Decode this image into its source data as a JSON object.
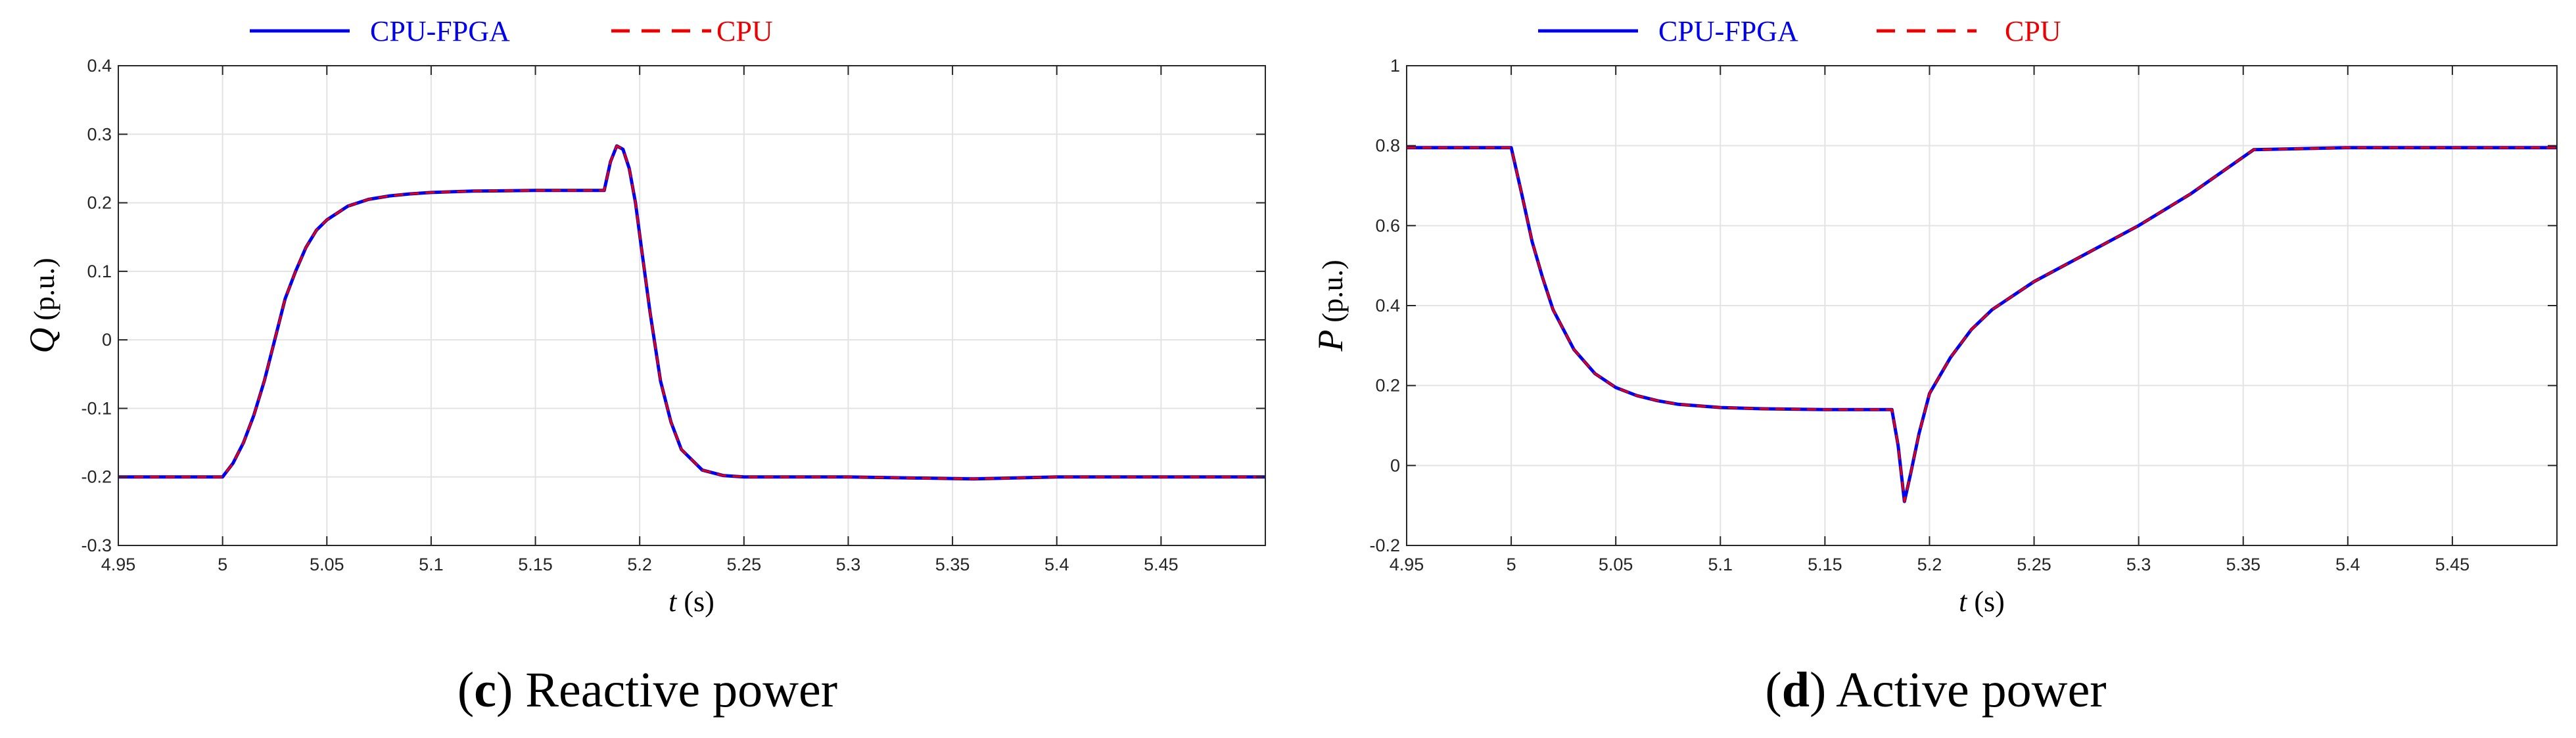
{
  "legend_items": [
    {
      "label": "CPU-FPGA",
      "color": "#0000ee",
      "style": "solid"
    },
    {
      "label": "CPU",
      "color": "#ee0000",
      "style": "dashed"
    }
  ],
  "chart_data": [
    {
      "type": "line",
      "caption_letter": "c",
      "caption_text": " Reactive power",
      "ylabel_symbol": "Q",
      "ylabel_unit": " (p.u.)",
      "xlabel_symbol": "t",
      "xlabel_unit": " (s)",
      "xlim": [
        4.95,
        5.5
      ],
      "ylim": [
        -0.3,
        0.4
      ],
      "x_ticks": [
        4.95,
        5,
        5.05,
        5.1,
        5.15,
        5.2,
        5.25,
        5.3,
        5.35,
        5.4,
        5.45
      ],
      "x_tick_labels": [
        "4.95",
        "5",
        "5.05",
        "5.1",
        "5.15",
        "5.2",
        "5.25",
        "5.3",
        "5.35",
        "5.4",
        "5.45"
      ],
      "y_ticks": [
        -0.3,
        -0.2,
        -0.1,
        0,
        0.1,
        0.2,
        0.3,
        0.4
      ],
      "y_tick_labels": [
        "-0.3",
        "-0.2",
        "-0.1",
        "0",
        "0.1",
        "0.2",
        "0.3",
        "0.4"
      ],
      "grid": true,
      "legend_position": "top",
      "series": [
        {
          "name": "CPU-FPGA",
          "color": "#0000ee",
          "x": [
            4.95,
            5.0,
            5.005,
            5.01,
            5.015,
            5.02,
            5.025,
            5.03,
            5.035,
            5.04,
            5.045,
            5.05,
            5.06,
            5.07,
            5.08,
            5.09,
            5.1,
            5.12,
            5.15,
            5.183,
            5.186,
            5.189,
            5.192,
            5.195,
            5.198,
            5.201,
            5.205,
            5.21,
            5.215,
            5.22,
            5.23,
            5.24,
            5.25,
            5.3,
            5.36,
            5.4,
            5.5
          ],
          "y": [
            -0.2,
            -0.2,
            -0.18,
            -0.15,
            -0.11,
            -0.06,
            0.0,
            0.06,
            0.1,
            0.135,
            0.16,
            0.175,
            0.195,
            0.205,
            0.21,
            0.213,
            0.215,
            0.217,
            0.218,
            0.218,
            0.26,
            0.283,
            0.278,
            0.25,
            0.2,
            0.13,
            0.04,
            -0.06,
            -0.12,
            -0.16,
            -0.19,
            -0.198,
            -0.2,
            -0.2,
            -0.203,
            -0.2,
            -0.2
          ]
        },
        {
          "name": "CPU",
          "color": "#ee0000",
          "x": [
            4.95,
            5.0,
            5.005,
            5.01,
            5.015,
            5.02,
            5.025,
            5.03,
            5.035,
            5.04,
            5.045,
            5.05,
            5.06,
            5.07,
            5.08,
            5.09,
            5.1,
            5.12,
            5.15,
            5.183,
            5.186,
            5.189,
            5.192,
            5.195,
            5.198,
            5.201,
            5.205,
            5.21,
            5.215,
            5.22,
            5.23,
            5.24,
            5.25,
            5.3,
            5.36,
            5.4,
            5.5
          ],
          "y": [
            -0.2,
            -0.2,
            -0.18,
            -0.15,
            -0.11,
            -0.06,
            0.0,
            0.06,
            0.1,
            0.135,
            0.16,
            0.175,
            0.195,
            0.205,
            0.21,
            0.213,
            0.215,
            0.217,
            0.218,
            0.218,
            0.26,
            0.283,
            0.278,
            0.25,
            0.2,
            0.13,
            0.04,
            -0.06,
            -0.12,
            -0.16,
            -0.19,
            -0.198,
            -0.2,
            -0.2,
            -0.203,
            -0.2,
            -0.2
          ]
        }
      ]
    },
    {
      "type": "line",
      "caption_letter": "d",
      "caption_text": " Active power",
      "ylabel_symbol": "P",
      "ylabel_unit": " (p.u.)",
      "xlabel_symbol": "t",
      "xlabel_unit": " (s)",
      "xlim": [
        4.95,
        5.5
      ],
      "ylim": [
        -0.2,
        1
      ],
      "x_ticks": [
        4.95,
        5,
        5.05,
        5.1,
        5.15,
        5.2,
        5.25,
        5.3,
        5.35,
        5.4,
        5.45
      ],
      "x_tick_labels": [
        "4.95",
        "5",
        "5.05",
        "5.1",
        "5.15",
        "5.2",
        "5.25",
        "5.3",
        "5.35",
        "5.4",
        "5.45"
      ],
      "y_ticks": [
        -0.2,
        0,
        0.2,
        0.4,
        0.6,
        0.8,
        1
      ],
      "y_tick_labels": [
        "-0.2",
        "0",
        "0.2",
        "0.4",
        "0.6",
        "0.8",
        "1"
      ],
      "grid": true,
      "legend_position": "top",
      "series": [
        {
          "name": "CPU-FPGA",
          "color": "#0000ee",
          "x": [
            4.95,
            5.0,
            5.005,
            5.01,
            5.015,
            5.02,
            5.03,
            5.04,
            5.05,
            5.06,
            5.07,
            5.08,
            5.1,
            5.12,
            5.15,
            5.182,
            5.185,
            5.188,
            5.191,
            5.195,
            5.2,
            5.21,
            5.22,
            5.23,
            5.25,
            5.275,
            5.3,
            5.325,
            5.355,
            5.4,
            5.45,
            5.5
          ],
          "y": [
            0.795,
            0.795,
            0.68,
            0.56,
            0.47,
            0.39,
            0.29,
            0.23,
            0.195,
            0.175,
            0.162,
            0.153,
            0.145,
            0.142,
            0.14,
            0.14,
            0.05,
            -0.09,
            -0.02,
            0.08,
            0.18,
            0.27,
            0.34,
            0.39,
            0.46,
            0.53,
            0.6,
            0.68,
            0.79,
            0.795,
            0.795,
            0.795
          ]
        },
        {
          "name": "CPU",
          "color": "#ee0000",
          "x": [
            4.95,
            5.0,
            5.005,
            5.01,
            5.015,
            5.02,
            5.03,
            5.04,
            5.05,
            5.06,
            5.07,
            5.08,
            5.1,
            5.12,
            5.15,
            5.182,
            5.185,
            5.188,
            5.191,
            5.195,
            5.2,
            5.21,
            5.22,
            5.23,
            5.25,
            5.275,
            5.3,
            5.325,
            5.355,
            5.4,
            5.45,
            5.5
          ],
          "y": [
            0.795,
            0.795,
            0.68,
            0.56,
            0.47,
            0.39,
            0.29,
            0.23,
            0.195,
            0.175,
            0.162,
            0.153,
            0.145,
            0.142,
            0.14,
            0.14,
            0.05,
            -0.09,
            -0.02,
            0.08,
            0.18,
            0.27,
            0.34,
            0.39,
            0.46,
            0.53,
            0.6,
            0.68,
            0.79,
            0.795,
            0.795,
            0.795
          ]
        }
      ]
    }
  ]
}
